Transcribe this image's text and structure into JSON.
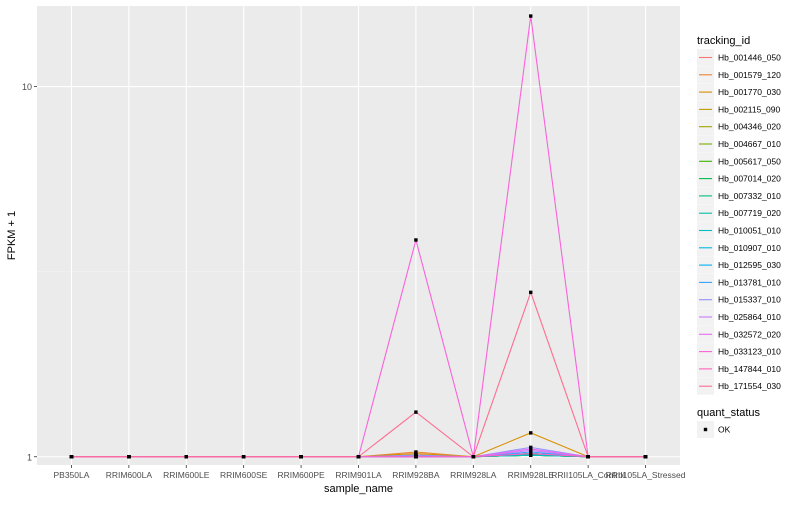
{
  "chart_data": {
    "type": "line",
    "title": "",
    "xlabel": "sample_name",
    "ylabel": "FPKM + 1",
    "y_scale": "log10",
    "ylim": [
      0.95,
      16.5
    ],
    "yticks": [
      {
        "value": 1,
        "label": "1"
      },
      {
        "value": 10,
        "label": "10"
      }
    ],
    "grid": true,
    "background": "#EBEBEB",
    "categories": [
      "PB350LA",
      "RRIM600LA",
      "RRIM600LE",
      "RRIM600SE",
      "RRIM600PE",
      "RRIM901LA",
      "RRIM928BA",
      "RRIM928LA",
      "RRIM928LE",
      "RRII105LA_Control",
      "RRII105LA_Stressed"
    ],
    "legend": {
      "title": "tracking_id",
      "position": "right"
    },
    "series": [
      {
        "name": "Hb_001446_050",
        "color": "#F8766D",
        "values": [
          1,
          1,
          1,
          1,
          1,
          1,
          1.01,
          1,
          1.01,
          1,
          1
        ]
      },
      {
        "name": "Hb_001579_120",
        "color": "#EB8335",
        "values": [
          1,
          1,
          1,
          1,
          1,
          1,
          1.03,
          1,
          1.02,
          1,
          1
        ]
      },
      {
        "name": "Hb_001770_030",
        "color": "#D89000",
        "values": [
          1,
          1,
          1,
          1,
          1,
          1,
          1.02,
          1,
          1.16,
          1,
          1
        ]
      },
      {
        "name": "Hb_002115_090",
        "color": "#BF9C00",
        "values": [
          1,
          1,
          1,
          1,
          1,
          1,
          1.01,
          1,
          1.01,
          1,
          1
        ]
      },
      {
        "name": "Hb_004346_020",
        "color": "#A3A500",
        "values": [
          1,
          1,
          1,
          1,
          1,
          1,
          1,
          1,
          1.01,
          1,
          1
        ]
      },
      {
        "name": "Hb_004667_010",
        "color": "#7CAE00",
        "values": [
          1,
          1,
          1,
          1,
          1,
          1,
          1,
          1,
          1.01,
          1,
          1
        ]
      },
      {
        "name": "Hb_005617_050",
        "color": "#39B600",
        "values": [
          1,
          1,
          1,
          1,
          1,
          1,
          1,
          1,
          1.01,
          1,
          1
        ]
      },
      {
        "name": "Hb_007014_020",
        "color": "#00BB4E",
        "values": [
          1,
          1,
          1,
          1,
          1,
          1,
          1,
          1,
          1.02,
          1,
          1
        ]
      },
      {
        "name": "Hb_007332_010",
        "color": "#00BF7D",
        "values": [
          1,
          1,
          1,
          1,
          1,
          1,
          1,
          1,
          1.01,
          1,
          1
        ]
      },
      {
        "name": "Hb_007719_020",
        "color": "#00C1A3",
        "values": [
          1,
          1,
          1,
          1,
          1,
          1,
          1,
          1,
          1.02,
          1,
          1
        ]
      },
      {
        "name": "Hb_010051_010",
        "color": "#00BFC4",
        "values": [
          1,
          1,
          1,
          1,
          1,
          1,
          1,
          1,
          1.01,
          1,
          1
        ]
      },
      {
        "name": "Hb_010907_010",
        "color": "#00BAE0",
        "values": [
          1,
          1,
          1,
          1,
          1,
          1,
          1,
          1,
          1.02,
          1,
          1
        ]
      },
      {
        "name": "Hb_012595_030",
        "color": "#00B0F6",
        "values": [
          1,
          1,
          1,
          1,
          1,
          1,
          1,
          1,
          1.02,
          1,
          1
        ]
      },
      {
        "name": "Hb_013781_010",
        "color": "#35A2FF",
        "values": [
          1,
          1,
          1,
          1,
          1,
          1,
          1,
          1,
          1.03,
          1,
          1
        ]
      },
      {
        "name": "Hb_015337_010",
        "color": "#9590FF",
        "values": [
          1,
          1,
          1,
          1,
          1,
          1,
          1.01,
          1,
          1.06,
          1,
          1
        ]
      },
      {
        "name": "Hb_025864_010",
        "color": "#C77CFF",
        "values": [
          1,
          1,
          1,
          1,
          1,
          1,
          1,
          1,
          1.04,
          1,
          1
        ]
      },
      {
        "name": "Hb_032572_020",
        "color": "#E76BF3",
        "values": [
          1,
          1,
          1,
          1,
          1,
          1,
          1,
          1,
          1.05,
          1,
          1
        ]
      },
      {
        "name": "Hb_033123_010",
        "color": "#FA62DB",
        "values": [
          1,
          1,
          1,
          1,
          1,
          1,
          3.85,
          1,
          15.5,
          1,
          1
        ]
      },
      {
        "name": "Hb_147844_010",
        "color": "#FF62BC",
        "values": [
          1,
          1,
          1,
          1,
          1,
          1,
          1,
          1,
          1.02,
          1,
          1
        ]
      },
      {
        "name": "Hb_171554_030",
        "color": "#FF6C91",
        "values": [
          1,
          1,
          1,
          1,
          1,
          1,
          1.32,
          1,
          2.78,
          1,
          1
        ]
      }
    ],
    "legend2": {
      "title": "quant_status",
      "items": [
        "OK"
      ]
    }
  }
}
